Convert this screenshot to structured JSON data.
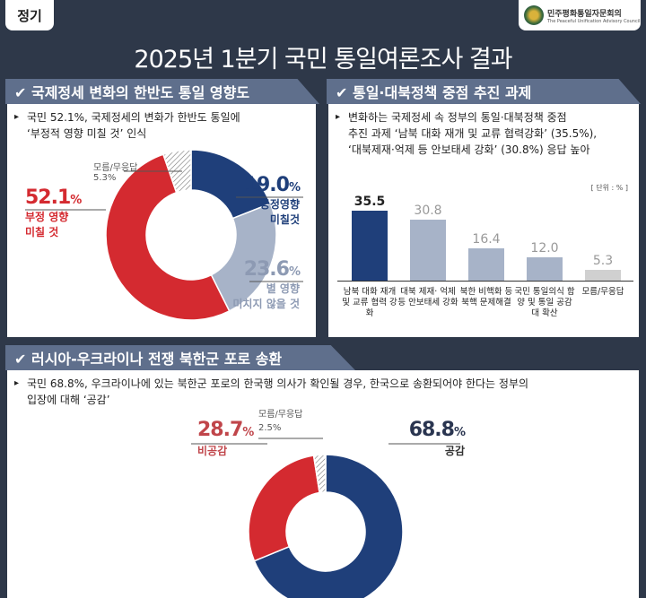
{
  "badge": "정기",
  "logo": {
    "name_ko": "민주평화통일자문회의",
    "name_en": "The Peaceful Unification Advisory Council"
  },
  "title": "2025년 1분기 국민 통일여론조사 결과",
  "colors": {
    "blue": "#1f3f7a",
    "red": "#d42a30",
    "grey": "#a7b3c8",
    "light": "#cfcfcf",
    "header": "#5f6f8c",
    "bg": "#2e3849"
  },
  "sections": [
    {
      "header": "✔ 국제정세 변화의 한반도 통일 영향도",
      "note_lines": [
        "국민 52.1%, 국제정세의 변화가 한반도 통일에",
        "‘부정적 영향 미칠 것’ 인식"
      ]
    },
    {
      "header": "✔ 통일·대북정책 중점 추진 과제",
      "note_lines": [
        "변화하는 국제정세 속 정부의 통일·대북정책 중점",
        "추진 과제 ‘남북 대화 재개 및 교류 협력강화’ (35.5%),",
        "‘대북제재·억제 등 안보태세 강화’ (30.8%) 응답 높아"
      ],
      "unit": "[ 단위 : % ]"
    },
    {
      "header": "✔ 러시아-우크라이나 전쟁 북한군 포로 송환",
      "note_lines": [
        "국민 68.8%, 우크라이나에 있는 북한군 포로의 한국행 의사가 확인될 경우, 한국으로 송환되어야 한다는 정부의",
        "입장에 대해 ‘공감’"
      ]
    }
  ],
  "chart_data": [
    {
      "type": "pie",
      "donut": true,
      "slices": [
        {
          "label": "긍정영향 미칠것",
          "value": 19.0,
          "color": "#1f3f7a"
        },
        {
          "label": "별 영향 미치지 않을 것",
          "value": 23.6,
          "color": "#a7b3c8"
        },
        {
          "label": "부정 영향 미칠 것",
          "value": 52.1,
          "color": "#d42a30"
        },
        {
          "label": "모름/무응답",
          "value": 5.3,
          "color": "hatch"
        }
      ]
    },
    {
      "type": "bar",
      "unit": "%",
      "categories": [
        "남북 대화 재개 및 교류 협력 강화",
        "대북 제재· 억제 등 안보태세 강화",
        "북한 비핵화 등 북핵 문제해결",
        "국민 통일의식 함양 및 통일 공감대 확산",
        "모름/무응답"
      ],
      "values": [
        35.5,
        30.8,
        16.4,
        12.0,
        5.3
      ],
      "value_labels": [
        "35.5",
        "30.8",
        "16.4",
        "12.0",
        "5.3"
      ],
      "colors": [
        "#1f3f7a",
        "#a7b3c8",
        "#a7b3c8",
        "#a7b3c8",
        "#d0d0d0"
      ],
      "ylim": [
        0,
        40
      ]
    },
    {
      "type": "pie",
      "donut": true,
      "slices": [
        {
          "label": "공감",
          "value": 68.8,
          "color": "#1f3f7a"
        },
        {
          "label": "비공감",
          "value": 28.7,
          "color": "#d42a30"
        },
        {
          "label": "모름/무응답",
          "value": 2.5,
          "color": "hatch"
        }
      ]
    }
  ],
  "labels": {
    "c1": {
      "pos": "19.0",
      "neg": "52.1",
      "neu": "23.6",
      "dk": "5.3%",
      "pct": "%",
      "pos_l1": "긍정영향",
      "pos_l2": "미칠것",
      "neg_l1": "부정 영향",
      "neg_l2": "미칠 것",
      "neu_l1": "별 영향",
      "neu_l2": "미치지 않을 것",
      "dk_l": "모름/무응답"
    },
    "c3": {
      "pos": "68.8",
      "neg": "28.7",
      "dk": "2.5%",
      "pct": "%",
      "pos_l": "공감",
      "neg_l": "비공감",
      "dk_l": "모름/무응답"
    }
  }
}
